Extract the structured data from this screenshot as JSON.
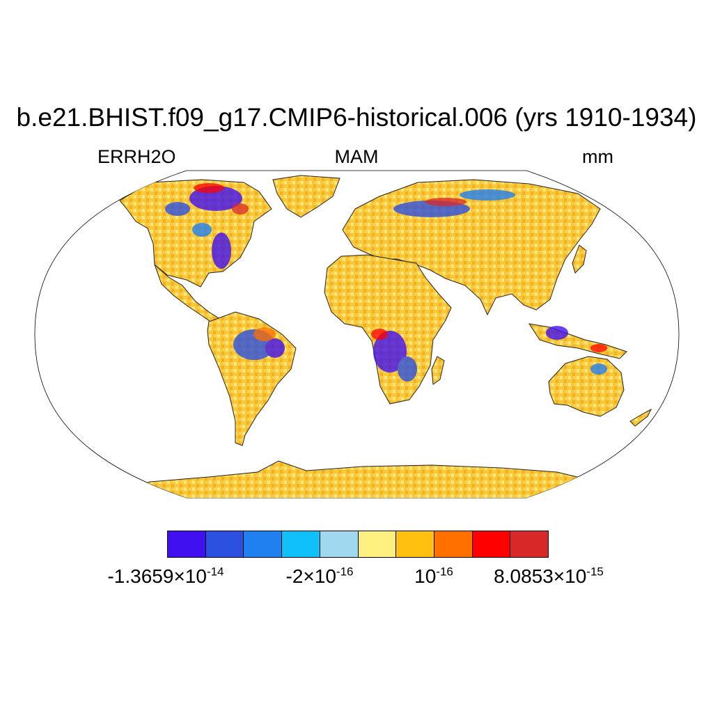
{
  "title": "b.e21.BHIST.f09_g17.CMIP6-historical.006 (yrs 1910-1934)",
  "subtitle_left": "ERRH2O",
  "subtitle_center": "MAM",
  "subtitle_right": "mm",
  "colorbar": {
    "colors": [
      "#4010f0",
      "#2c50e0",
      "#2080f0",
      "#10c0f8",
      "#a0d8f0",
      "#fff080",
      "#ffc010",
      "#ff7000",
      "#ff0000",
      "#d82828"
    ],
    "labels": [
      {
        "mantissa": "-1.3659",
        "exponent": "-14",
        "times": true
      },
      {
        "mantissa": "-2",
        "exponent": "-16",
        "times": true
      },
      {
        "mantissa": "",
        "exponent": "-16",
        "times": false
      },
      {
        "mantissa": "8.0853",
        "exponent": "-15",
        "times": true
      }
    ]
  },
  "map": {
    "projection": "Robinson",
    "land_color": "#f8c838",
    "ocean_color": "#ffffff",
    "negative_hotspots": [
      "Canada / Alaska",
      "Eastern North America",
      "Amazon basin",
      "Central Africa",
      "Northern Eurasia",
      "Southeast Asia"
    ]
  }
}
